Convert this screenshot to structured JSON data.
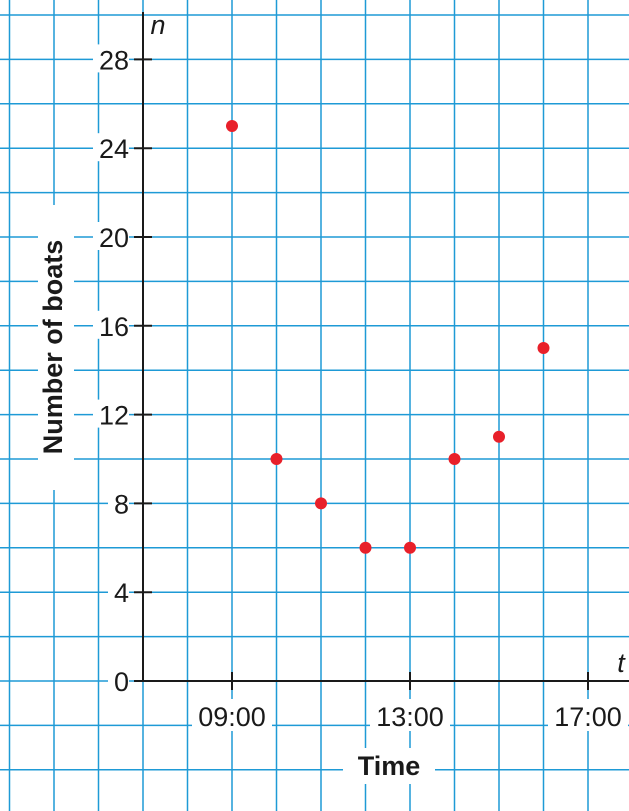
{
  "chart_data": {
    "type": "scatter",
    "title": "",
    "xlabel": "Time",
    "ylabel": "Number of boats",
    "x_var": "t",
    "y_var": "n",
    "x_unit": "hours (time of day)",
    "x_ticks": [
      {
        "value": 9,
        "label": "09:00"
      },
      {
        "value": 13,
        "label": "13:00"
      },
      {
        "value": 17,
        "label": "17:00"
      }
    ],
    "y_ticks": [
      0,
      4,
      8,
      12,
      16,
      20,
      24,
      28
    ],
    "xlim": [
      6,
      19
    ],
    "ylim": [
      0,
      30
    ],
    "grid": true,
    "point_color": "#e8202a",
    "grid_color": "#1e9ad6",
    "series": [
      {
        "points": [
          {
            "x": 9,
            "y": 25
          },
          {
            "x": 10,
            "y": 10
          },
          {
            "x": 11,
            "y": 8
          },
          {
            "x": 12,
            "y": 6
          },
          {
            "x": 13,
            "y": 6
          },
          {
            "x": 14,
            "y": 10
          },
          {
            "x": 15,
            "y": 11
          },
          {
            "x": 16,
            "y": 15
          }
        ]
      }
    ]
  }
}
